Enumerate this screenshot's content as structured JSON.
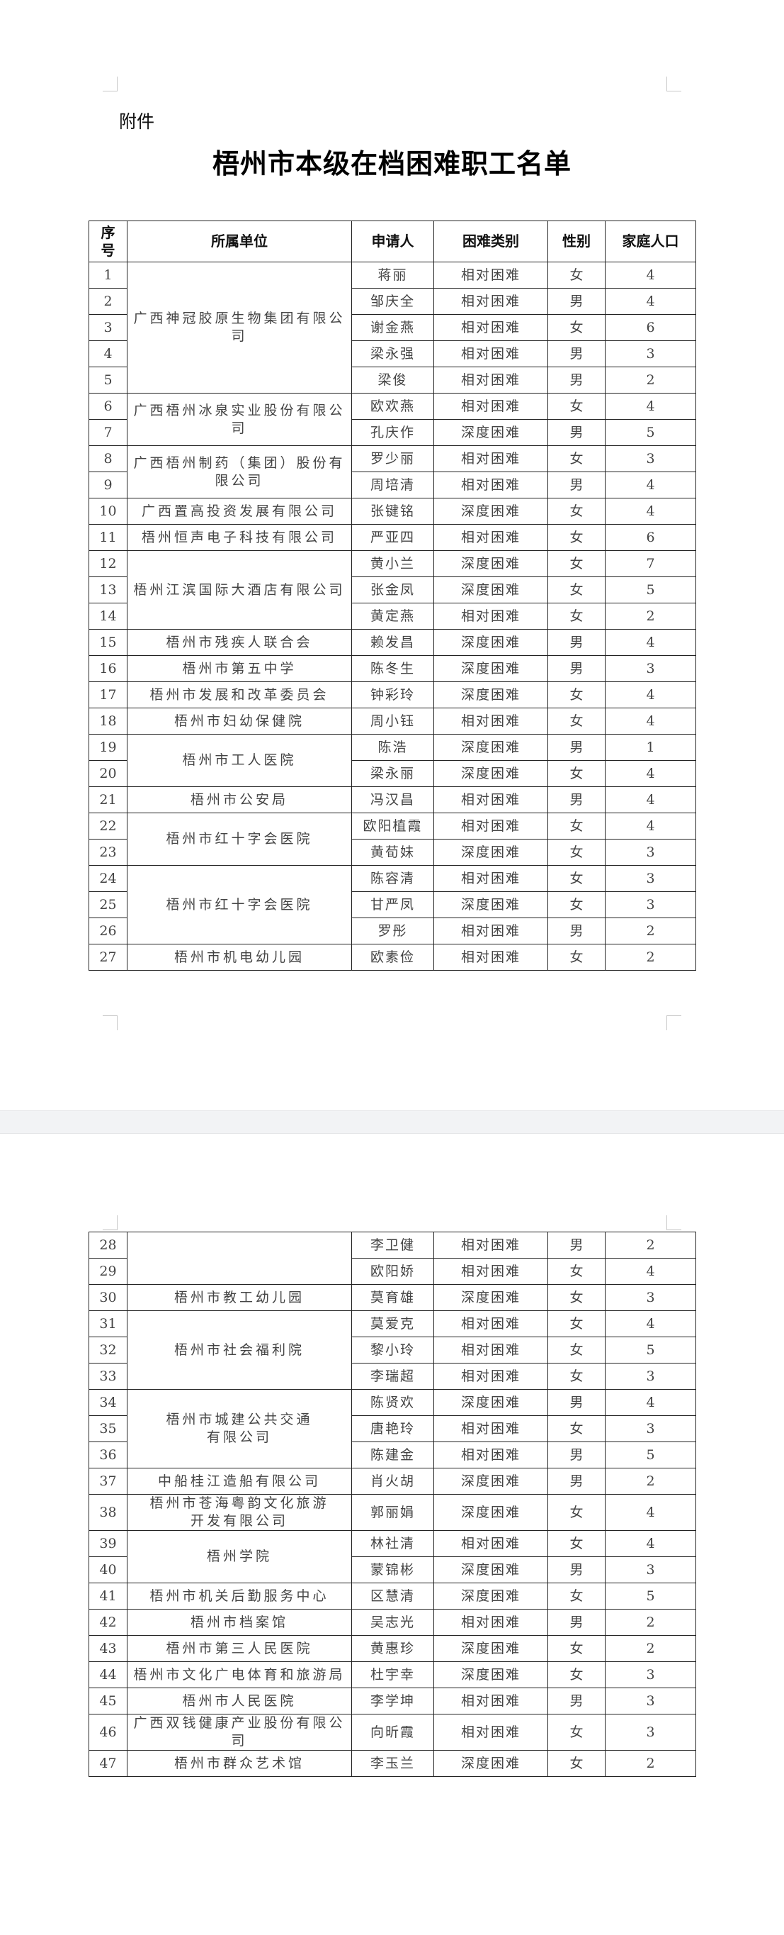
{
  "attachment_label": "附件",
  "title": "梧州市本级在档困难职工名单",
  "columns": {
    "no": "序\n号",
    "unit": "所属单位",
    "name": "申请人",
    "type": "困难类别",
    "gender": "性别",
    "family": "家庭人口"
  },
  "pages": [
    {
      "groups": [
        {
          "unit": "广西神冠胶原生物集团有限公司",
          "rows": [
            {
              "no": "1",
              "name": "蒋丽",
              "type": "相对困难",
              "gender": "女",
              "family": "4"
            },
            {
              "no": "2",
              "name": "邹庆全",
              "type": "相对困难",
              "gender": "男",
              "family": "4"
            },
            {
              "no": "3",
              "name": "谢金燕",
              "type": "相对困难",
              "gender": "女",
              "family": "6"
            },
            {
              "no": "4",
              "name": "梁永强",
              "type": "相对困难",
              "gender": "男",
              "family": "3"
            },
            {
              "no": "5",
              "name": "梁俊",
              "type": "相对困难",
              "gender": "男",
              "family": "2"
            }
          ]
        },
        {
          "unit": "广西梧州冰泉实业股份有限公司",
          "rows": [
            {
              "no": "6",
              "name": "欧欢燕",
              "type": "相对困难",
              "gender": "女",
              "family": "4"
            },
            {
              "no": "7",
              "name": "孔庆作",
              "type": "深度困难",
              "gender": "男",
              "family": "5"
            }
          ]
        },
        {
          "unit": "广西梧州制药（集团）股份有限公司",
          "rows": [
            {
              "no": "8",
              "name": "罗少丽",
              "type": "相对困难",
              "gender": "女",
              "family": "3"
            },
            {
              "no": "9",
              "name": "周培清",
              "type": "相对困难",
              "gender": "男",
              "family": "4"
            }
          ]
        },
        {
          "unit": "广西置高投资发展有限公司",
          "rows": [
            {
              "no": "10",
              "name": "张键铭",
              "type": "深度困难",
              "gender": "女",
              "family": "4"
            }
          ]
        },
        {
          "unit": "梧州恒声电子科技有限公司",
          "rows": [
            {
              "no": "11",
              "name": "严亚四",
              "type": "相对困难",
              "gender": "女",
              "family": "6"
            }
          ]
        },
        {
          "unit": "梧州江滨国际大酒店有限公司",
          "rows": [
            {
              "no": "12",
              "name": "黄小兰",
              "type": "深度困难",
              "gender": "女",
              "family": "7"
            },
            {
              "no": "13",
              "name": "张金凤",
              "type": "深度困难",
              "gender": "女",
              "family": "5"
            },
            {
              "no": "14",
              "name": "黄定燕",
              "type": "相对困难",
              "gender": "女",
              "family": "2"
            }
          ]
        },
        {
          "unit": "梧州市残疾人联合会",
          "rows": [
            {
              "no": "15",
              "name": "赖发昌",
              "type": "深度困难",
              "gender": "男",
              "family": "4"
            }
          ]
        },
        {
          "unit": "梧州市第五中学",
          "rows": [
            {
              "no": "16",
              "name": "陈冬生",
              "type": "深度困难",
              "gender": "男",
              "family": "3"
            }
          ]
        },
        {
          "unit": "梧州市发展和改革委员会",
          "rows": [
            {
              "no": "17",
              "name": "钟彩玲",
              "type": "深度困难",
              "gender": "女",
              "family": "4"
            }
          ]
        },
        {
          "unit": "梧州市妇幼保健院",
          "rows": [
            {
              "no": "18",
              "name": "周小钰",
              "type": "相对困难",
              "gender": "女",
              "family": "4"
            }
          ]
        },
        {
          "unit": "梧州市工人医院",
          "rows": [
            {
              "no": "19",
              "name": "陈浩",
              "type": "深度困难",
              "gender": "男",
              "family": "1"
            },
            {
              "no": "20",
              "name": "梁永丽",
              "type": "深度困难",
              "gender": "女",
              "family": "4"
            }
          ]
        },
        {
          "unit": "梧州市公安局",
          "rows": [
            {
              "no": "21",
              "name": "冯汉昌",
              "type": "相对困难",
              "gender": "男",
              "family": "4"
            }
          ]
        },
        {
          "unit": "梧州市红十字会医院",
          "rows": [
            {
              "no": "22",
              "name": "欧阳植霞",
              "type": "相对困难",
              "gender": "女",
              "family": "4"
            },
            {
              "no": "23",
              "name": "黄荀妹",
              "type": "深度困难",
              "gender": "女",
              "family": "3"
            }
          ]
        },
        {
          "unit": "梧州市红十字会医院",
          "rows": [
            {
              "no": "24",
              "name": "陈容清",
              "type": "相对困难",
              "gender": "女",
              "family": "3"
            },
            {
              "no": "25",
              "name": "甘严凤",
              "type": "深度困难",
              "gender": "女",
              "family": "3"
            },
            {
              "no": "26",
              "name": "罗彤",
              "type": "相对困难",
              "gender": "男",
              "family": "2"
            }
          ]
        },
        {
          "unit": "梧州市机电幼儿园",
          "rows": [
            {
              "no": "27",
              "name": "欧素俭",
              "type": "相对困难",
              "gender": "女",
              "family": "2"
            }
          ]
        }
      ]
    },
    {
      "groups": [
        {
          "unit": "",
          "rows": [
            {
              "no": "28",
              "name": "李卫健",
              "type": "相对困难",
              "gender": "男",
              "family": "2"
            },
            {
              "no": "29",
              "name": "欧阳娇",
              "type": "相对困难",
              "gender": "女",
              "family": "4"
            }
          ]
        },
        {
          "unit": "梧州市教工幼儿园",
          "rows": [
            {
              "no": "30",
              "name": "莫育雄",
              "type": "深度困难",
              "gender": "女",
              "family": "3"
            }
          ]
        },
        {
          "unit": "梧州市社会福利院",
          "rows": [
            {
              "no": "31",
              "name": "莫爱克",
              "type": "相对困难",
              "gender": "女",
              "family": "4"
            },
            {
              "no": "32",
              "name": "黎小玲",
              "type": "相对困难",
              "gender": "女",
              "family": "5"
            },
            {
              "no": "33",
              "name": "李瑞超",
              "type": "相对困难",
              "gender": "女",
              "family": "3"
            }
          ]
        },
        {
          "unit": "梧州市城建公共交通\n有限公司",
          "rows": [
            {
              "no": "34",
              "name": "陈贤欢",
              "type": "深度困难",
              "gender": "男",
              "family": "4"
            },
            {
              "no": "35",
              "name": "唐艳玲",
              "type": "相对困难",
              "gender": "女",
              "family": "3"
            },
            {
              "no": "36",
              "name": "陈建金",
              "type": "相对困难",
              "gender": "男",
              "family": "5"
            }
          ]
        },
        {
          "unit": "中船桂江造船有限公司",
          "rows": [
            {
              "no": "37",
              "name": "肖火胡",
              "type": "深度困难",
              "gender": "男",
              "family": "2"
            }
          ]
        },
        {
          "unit": "梧州市苍海粤韵文化旅游\n开发有限公司",
          "rows": [
            {
              "no": "38",
              "name": "郭丽娟",
              "type": "深度困难",
              "gender": "女",
              "family": "4"
            }
          ]
        },
        {
          "unit": "梧州学院",
          "rows": [
            {
              "no": "39",
              "name": "林社清",
              "type": "相对困难",
              "gender": "女",
              "family": "4"
            },
            {
              "no": "40",
              "name": "蒙锦彬",
              "type": "深度困难",
              "gender": "男",
              "family": "3"
            }
          ]
        },
        {
          "unit": "梧州市机关后勤服务中心",
          "rows": [
            {
              "no": "41",
              "name": "区慧清",
              "type": "深度困难",
              "gender": "女",
              "family": "5"
            }
          ]
        },
        {
          "unit": "梧州市档案馆",
          "rows": [
            {
              "no": "42",
              "name": "吴志光",
              "type": "相对困难",
              "gender": "男",
              "family": "2"
            }
          ]
        },
        {
          "unit": "梧州市第三人民医院",
          "rows": [
            {
              "no": "43",
              "name": "黄惠珍",
              "type": "深度困难",
              "gender": "女",
              "family": "2"
            }
          ]
        },
        {
          "unit": "梧州市文化广电体育和旅游局",
          "rows": [
            {
              "no": "44",
              "name": "杜宇幸",
              "type": "深度困难",
              "gender": "女",
              "family": "3"
            }
          ]
        },
        {
          "unit": "梧州市人民医院",
          "rows": [
            {
              "no": "45",
              "name": "李学坤",
              "type": "相对困难",
              "gender": "男",
              "family": "3"
            }
          ]
        },
        {
          "unit": "广西双钱健康产业股份有限公司",
          "rows": [
            {
              "no": "46",
              "name": "向昕霞",
              "type": "相对困难",
              "gender": "女",
              "family": "3"
            }
          ]
        },
        {
          "unit": "梧州市群众艺术馆",
          "rows": [
            {
              "no": "47",
              "name": "李玉兰",
              "type": "深度困难",
              "gender": "女",
              "family": "2"
            }
          ]
        }
      ]
    }
  ]
}
